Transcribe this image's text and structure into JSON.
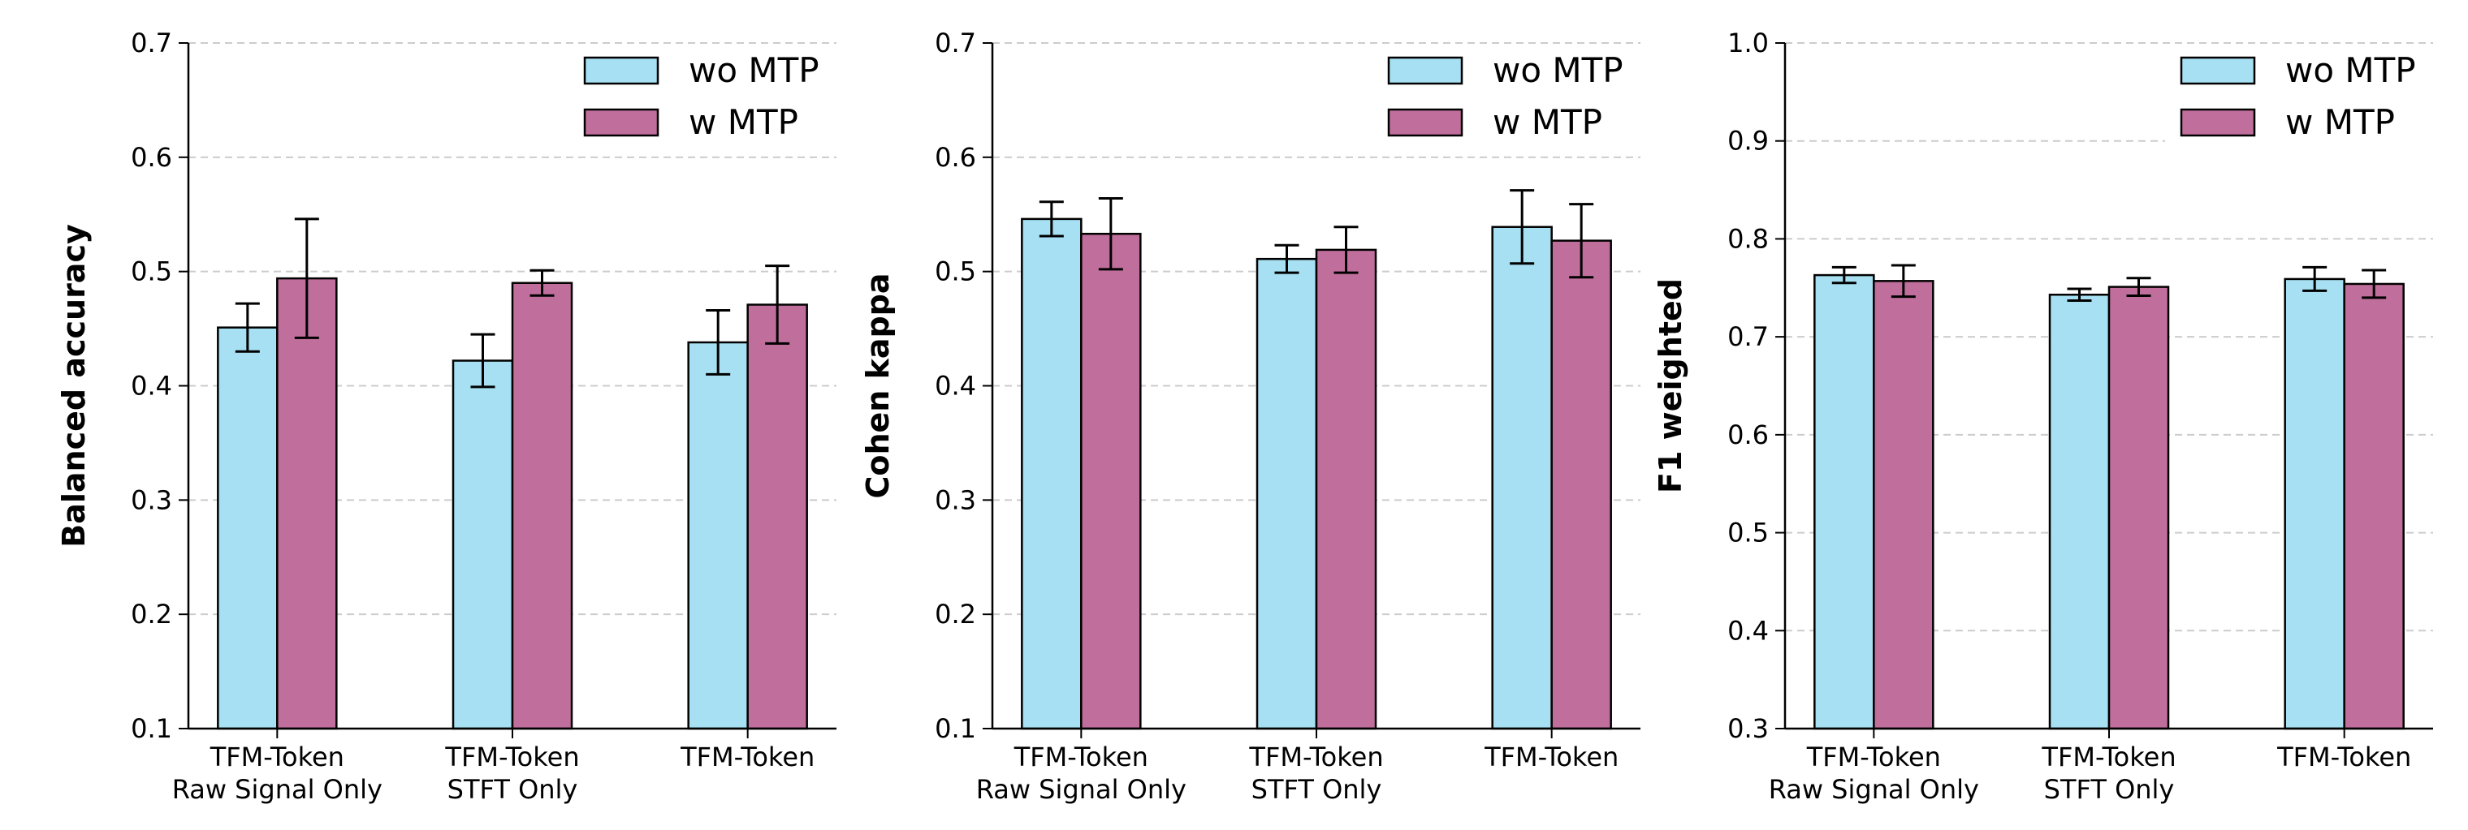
{
  "chart_data": [
    {
      "type": "bar",
      "title": "",
      "xlabel": "",
      "ylabel": "Balanced accuracy",
      "ylim": [
        0.1,
        0.7
      ],
      "yticks": [
        "0.1",
        "0.2",
        "0.3",
        "0.4",
        "0.5",
        "0.6",
        "0.7"
      ],
      "categories": [
        [
          "TFM-Token",
          "Raw Signal Only"
        ],
        [
          "TFM-Token",
          "STFT Only"
        ],
        [
          "TFM-Token"
        ]
      ],
      "grid": true,
      "legend_position": "top-right",
      "series": [
        {
          "name": "wo MTP",
          "color": "#a6e0f2",
          "values": [
            0.451,
            0.422,
            0.438
          ],
          "errors": [
            0.021,
            0.023,
            0.028
          ]
        },
        {
          "name": "w MTP",
          "color": "#c06f9d",
          "values": [
            0.494,
            0.49,
            0.471
          ],
          "errors": [
            0.052,
            0.011,
            0.034
          ]
        }
      ]
    },
    {
      "type": "bar",
      "title": "",
      "xlabel": "",
      "ylabel": "Cohen kappa",
      "ylim": [
        0.1,
        0.7
      ],
      "yticks": [
        "0.1",
        "0.2",
        "0.3",
        "0.4",
        "0.5",
        "0.6",
        "0.7"
      ],
      "categories": [
        [
          "TFM-Token",
          "Raw Signal Only"
        ],
        [
          "TFM-Token",
          "STFT Only"
        ],
        [
          "TFM-Token"
        ]
      ],
      "grid": true,
      "legend_position": "top-right",
      "series": [
        {
          "name": "wo MTP",
          "color": "#a6e0f2",
          "values": [
            0.546,
            0.511,
            0.539
          ],
          "errors": [
            0.015,
            0.012,
            0.032
          ]
        },
        {
          "name": "w MTP",
          "color": "#c06f9d",
          "values": [
            0.533,
            0.519,
            0.527
          ],
          "errors": [
            0.031,
            0.02,
            0.032
          ]
        }
      ]
    },
    {
      "type": "bar",
      "title": "",
      "xlabel": "",
      "ylabel": "F1 weighted",
      "ylim": [
        0.3,
        1.0
      ],
      "yticks": [
        "0.3",
        "0.4",
        "0.5",
        "0.6",
        "0.7",
        "0.8",
        "0.9",
        "1.0"
      ],
      "categories": [
        [
          "TFM-Token",
          "Raw Signal Only"
        ],
        [
          "TFM-Token",
          "STFT Only"
        ],
        [
          "TFM-Token"
        ]
      ],
      "grid": true,
      "legend_position": "top-right",
      "series": [
        {
          "name": "wo MTP",
          "color": "#a6e0f2",
          "values": [
            0.763,
            0.743,
            0.759
          ],
          "errors": [
            0.008,
            0.006,
            0.012
          ]
        },
        {
          "name": "w MTP",
          "color": "#c06f9d",
          "values": [
            0.757,
            0.751,
            0.754
          ],
          "errors": [
            0.016,
            0.009,
            0.014
          ]
        }
      ]
    }
  ]
}
